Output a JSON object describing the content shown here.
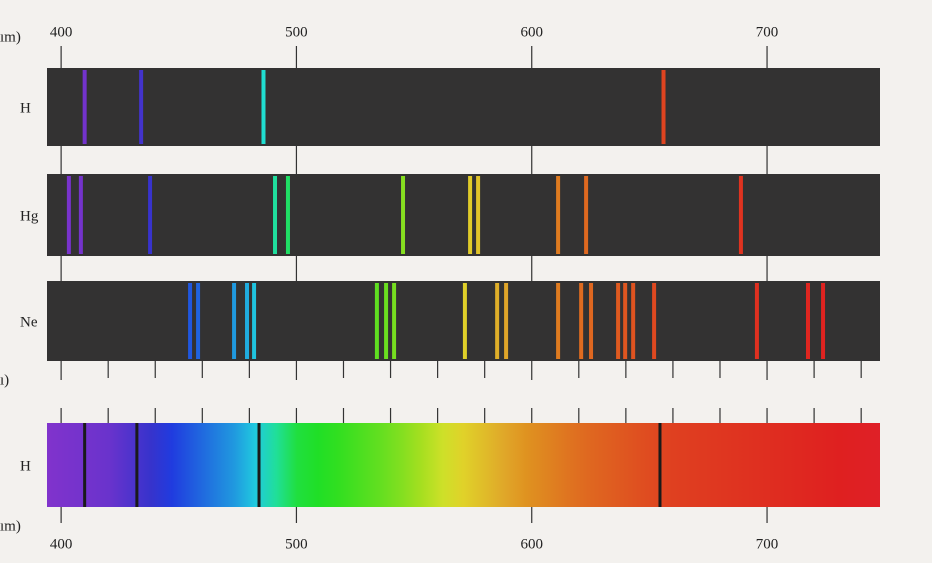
{
  "chart_data": {
    "type": "spectrum",
    "xlim": [
      394,
      748
    ],
    "xticks": [
      400,
      500,
      600,
      700
    ],
    "minor_xticks": [
      420,
      440,
      460,
      480,
      520,
      540,
      560,
      580,
      620,
      640,
      660,
      680,
      720,
      740
    ],
    "unit_fragments": [
      "ım)",
      "ı)",
      "ım)"
    ],
    "emission": [
      {
        "name": "H",
        "lines": [
          410,
          434,
          486,
          656
        ]
      },
      {
        "name": "Hg",
        "lines": [
          403.3,
          408.4,
          437.8,
          490.9,
          496.4,
          545.3,
          573.8,
          577.2,
          611.2,
          623.1,
          688.9
        ]
      },
      {
        "name": "Ne",
        "lines": [
          454.8,
          458.2,
          473.5,
          479,
          482,
          534.2,
          538.1,
          541.5,
          571.6,
          585.3,
          589.1,
          611.2,
          621,
          625.2,
          636.7,
          639.7,
          643.1,
          652,
          695.7,
          717.4,
          723.8
        ]
      }
    ],
    "absorption": {
      "name": "H",
      "lines": [
        410,
        432.2,
        484.1,
        654.5
      ]
    }
  }
}
